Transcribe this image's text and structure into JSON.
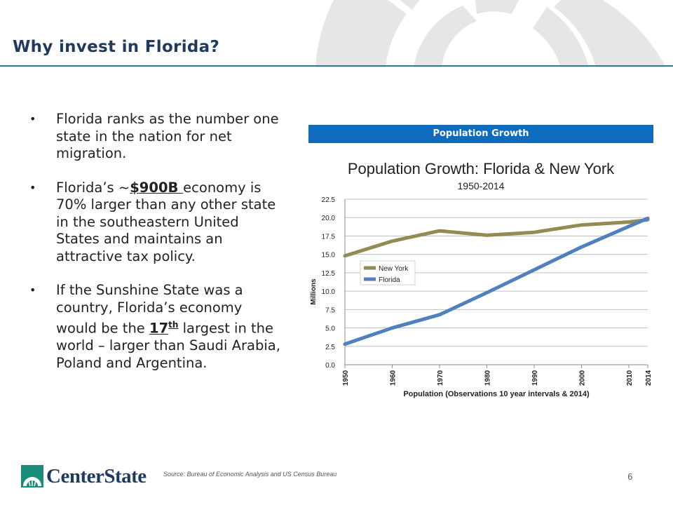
{
  "page": {
    "title": "Why invest in Florida?",
    "page_number": "6",
    "source": "Source:  Bureau of Economic Analysis and US Census Bureau"
  },
  "bullets": [
    {
      "text": "Florida ranks as the number one state in the nation for net migration."
    },
    {
      "pre": "Florida’s ~",
      "em": "$900B ",
      "post": "economy is 70% larger than any other state in the southeastern United States and maintains an attractive tax policy."
    },
    {
      "pre": "If the Sunshine State was a country, Florida’s economy would be the ",
      "em": "17",
      "sup": "th",
      "post": " largest in the world – larger than Saudi Arabia, Poland and Argentina."
    }
  ],
  "chart_header": "Population Growth",
  "logo": {
    "text": "CenterState",
    "color": "#1f3a5f",
    "accent": "#1a8c7a"
  },
  "chart_data": {
    "type": "line",
    "title": "Population Growth: Florida & New York",
    "subtitle": "1950-2014",
    "xlabel": "Population (Observations 10 year intervals & 2014)",
    "ylabel": "Millions",
    "x": [
      1950,
      1960,
      1970,
      1980,
      1990,
      2000,
      2010,
      2014
    ],
    "xticks": [
      "1950",
      "1960",
      "1970",
      "1980",
      "1990",
      "2000",
      "2010",
      "2014"
    ],
    "ylim": [
      0,
      22.5
    ],
    "yticks": [
      "0.0",
      "2.5",
      "5.0",
      "7.5",
      "10.0",
      "12.5",
      "15.0",
      "17.5",
      "20.0",
      "22.5"
    ],
    "grid": true,
    "legend_position": "left",
    "series": [
      {
        "name": "New York",
        "color": "#948a54",
        "values": [
          14.8,
          16.8,
          18.2,
          17.6,
          18.0,
          19.0,
          19.4,
          19.7
        ]
      },
      {
        "name": "Florida",
        "color": "#4f81bd",
        "values": [
          2.8,
          5.0,
          6.8,
          9.8,
          12.9,
          16.0,
          18.8,
          19.9
        ]
      }
    ]
  }
}
